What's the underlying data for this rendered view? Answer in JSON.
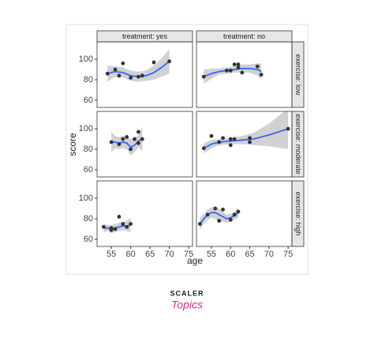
{
  "axis_titles": {
    "x": "age",
    "y": "score"
  },
  "strips": {
    "columns": [
      "treatment: yes",
      "treatment: no"
    ],
    "rows": [
      "exercise: low",
      "exercise: moderate",
      "exercise: high"
    ]
  },
  "watermark": {
    "brand": "SCALER",
    "sub": "Topics"
  },
  "chart_data": [
    {
      "type": "scatter",
      "color": "#333333",
      "xlim": [
        51.3,
        76
      ],
      "ylim": [
        53,
        117
      ],
      "yticks": [
        60,
        80,
        100
      ],
      "x": [
        54,
        56,
        57,
        58,
        60,
        62,
        63,
        66,
        70
      ],
      "values": [
        86,
        90,
        84,
        96,
        82,
        83,
        84,
        97,
        98
      ],
      "fit": {
        "color": "#3366ff",
        "band_color": "#bdbdbd",
        "x": [
          54,
          56,
          58,
          60,
          62,
          64,
          66,
          68,
          70
        ],
        "values": [
          86,
          88,
          87,
          84,
          83,
          84,
          87,
          92,
          98
        ],
        "lower": [
          78,
          83,
          82,
          79,
          78,
          79,
          80,
          83,
          86
        ],
        "upper": [
          94,
          93,
          92,
          89,
          88,
          89,
          94,
          101,
          110
        ]
      }
    },
    {
      "type": "scatter",
      "color": "#333333",
      "xlim": [
        51.1,
        76
      ],
      "ylim": [
        53,
        117
      ],
      "x": [
        53,
        59,
        60,
        61,
        62,
        62,
        63,
        67,
        68
      ],
      "values": [
        83,
        89,
        89,
        95,
        95,
        92,
        87,
        93,
        85
      ],
      "fit": {
        "color": "#3366ff",
        "band_color": "#bdbdbd",
        "x": [
          53,
          55,
          57,
          59,
          61,
          63,
          65,
          67,
          68
        ],
        "values": [
          83,
          86,
          88,
          89,
          90,
          91,
          91,
          90,
          88
        ],
        "lower": [
          76,
          81,
          85,
          86,
          87,
          87,
          87,
          84,
          80
        ],
        "upper": [
          90,
          91,
          91,
          92,
          93,
          95,
          95,
          96,
          96
        ]
      }
    },
    {
      "type": "scatter",
      "color": "#333333",
      "xlim": [
        51.3,
        76
      ],
      "ylim": [
        53,
        117
      ],
      "yticks": [
        60,
        80,
        100
      ],
      "x": [
        55,
        57,
        58,
        59,
        60,
        61,
        62,
        62,
        63
      ],
      "values": [
        87,
        85,
        90,
        92,
        80,
        90,
        97,
        86,
        90
      ],
      "fit": {
        "color": "#3366ff",
        "band_color": "#bdbdbd",
        "x": [
          55,
          56,
          57,
          58,
          59,
          60,
          61,
          62,
          63
        ],
        "values": [
          87,
          87,
          86,
          87,
          86,
          82,
          84,
          88,
          90
        ],
        "lower": [
          77,
          81,
          80,
          81,
          80,
          74,
          77,
          82,
          78
        ],
        "upper": [
          97,
          93,
          92,
          93,
          92,
          90,
          91,
          94,
          102
        ]
      }
    },
    {
      "type": "scatter",
      "color": "#333333",
      "xlim": [
        51.1,
        76
      ],
      "ylim": [
        53,
        117
      ],
      "x": [
        53,
        55,
        57,
        58,
        60,
        60,
        61,
        65,
        65,
        75
      ],
      "values": [
        81,
        93,
        87,
        91,
        90,
        84,
        90,
        91,
        87,
        100
      ],
      "fit": {
        "color": "#3366ff",
        "band_color": "#bdbdbd",
        "x": [
          53,
          55,
          57,
          60,
          63,
          66,
          70,
          75
        ],
        "values": [
          81,
          85,
          87,
          88,
          89,
          90,
          94,
          100
        ],
        "lower": [
          76,
          81,
          84,
          85,
          85,
          84,
          83,
          80
        ],
        "upper": [
          86,
          89,
          90,
          91,
          93,
          96,
          105,
          120
        ]
      }
    },
    {
      "type": "scatter",
      "color": "#333333",
      "xlim": [
        51.3,
        76
      ],
      "ylim": [
        53,
        117
      ],
      "yticks": [
        60,
        80,
        100
      ],
      "xticks": [
        55,
        60,
        65,
        70,
        75
      ],
      "x": [
        53,
        55,
        55,
        56,
        57,
        58,
        59,
        60
      ],
      "values": [
        72,
        71,
        69,
        70,
        82,
        75,
        72,
        75
      ],
      "fit": {
        "color": "#3366ff",
        "band_color": "#bdbdbd",
        "x": [
          53,
          54,
          55,
          56,
          57,
          58,
          59,
          60
        ],
        "values": [
          71,
          71,
          70,
          71,
          72,
          73,
          73,
          74
        ],
        "lower": [
          67,
          68,
          66,
          67,
          68,
          69,
          68,
          67
        ],
        "upper": [
          75,
          74,
          74,
          75,
          76,
          77,
          78,
          81
        ]
      }
    },
    {
      "type": "scatter",
      "color": "#333333",
      "xlim": [
        51.1,
        76
      ],
      "ylim": [
        53,
        117
      ],
      "xticks": [
        55,
        60,
        65,
        70,
        75
      ],
      "x": [
        52,
        54,
        56,
        57,
        58,
        60,
        61,
        62
      ],
      "values": [
        75,
        84,
        90,
        78,
        89,
        79,
        84,
        87
      ],
      "fit": {
        "color": "#3366ff",
        "band_color": "#bdbdbd",
        "x": [
          52,
          53,
          54,
          55,
          56,
          57,
          58,
          59,
          60,
          61,
          62
        ],
        "values": [
          75,
          80,
          84,
          86,
          86,
          84,
          82,
          80,
          81,
          83,
          86
        ],
        "lower": [
          69,
          75,
          79,
          81,
          80,
          78,
          77,
          76,
          77,
          79,
          81
        ],
        "upper": [
          81,
          85,
          89,
          91,
          92,
          90,
          87,
          84,
          85,
          87,
          91
        ]
      }
    }
  ]
}
